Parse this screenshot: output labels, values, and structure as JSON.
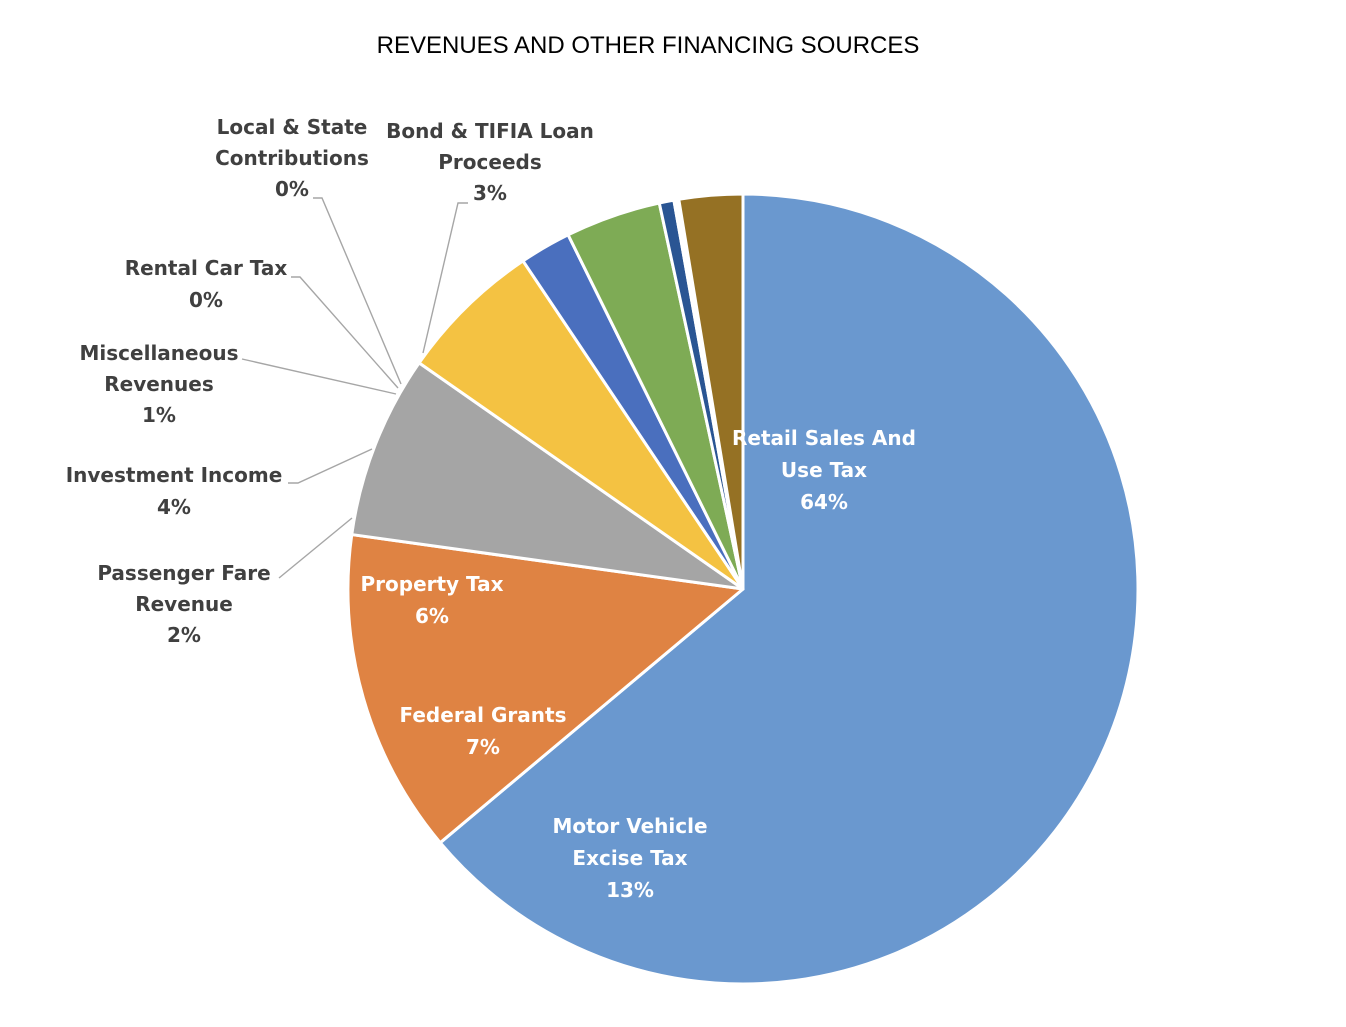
{
  "chart_data": {
    "type": "pie",
    "title": "REVENUES AND OTHER FINANCING SOURCES",
    "start_angle_deg": 0,
    "direction": "clockwise",
    "slices": [
      {
        "name": "Retail Sales And Use Tax",
        "label_lines": [
          "Retail Sales And",
          "Use Tax"
        ],
        "percent_label": "64%",
        "value": 63.9,
        "color": "#6a98cf",
        "label_color": "#ffffff",
        "label_position": "inside"
      },
      {
        "name": "Motor Vehicle Excise Tax",
        "label_lines": [
          "Motor Vehicle",
          "Excise Tax"
        ],
        "percent_label": "13%",
        "value": 13.3,
        "color": "#df8343",
        "label_color": "#ffffff",
        "label_position": "inside"
      },
      {
        "name": "Federal Grants",
        "label_lines": [
          "Federal Grants"
        ],
        "percent_label": "7%",
        "value": 7.5,
        "color": "#a5a5a5",
        "label_color": "#ffffff",
        "label_position": "inside"
      },
      {
        "name": "Property Tax",
        "label_lines": [
          "Property Tax"
        ],
        "percent_label": "6%",
        "value": 5.9,
        "color": "#f4c242",
        "label_color": "#ffffff",
        "label_position": "inside"
      },
      {
        "name": "Passenger Fare Revenue",
        "label_lines": [
          "Passenger Fare",
          "Revenue"
        ],
        "percent_label": "2%",
        "value": 2.1,
        "color": "#4a6fbe",
        "label_color": "#404040",
        "label_position": "outside"
      },
      {
        "name": "Investment Income",
        "label_lines": [
          "Investment Income"
        ],
        "percent_label": "4%",
        "value": 3.9,
        "color": "#7eab55",
        "label_color": "#404040",
        "label_position": "outside"
      },
      {
        "name": "Miscellaneous Revenues",
        "label_lines": [
          "Miscellaneous",
          "Revenues"
        ],
        "percent_label": "1%",
        "value": 0.6,
        "color": "#2a5593",
        "label_color": "#404040",
        "label_position": "outside"
      },
      {
        "name": "Rental Car Tax",
        "label_lines": [
          "Rental Car Tax"
        ],
        "percent_label": "0%",
        "value": 0.1,
        "color": "#a2480f",
        "label_color": "#404040",
        "label_position": "outside"
      },
      {
        "name": "Local & State Contributions",
        "label_lines": [
          "Local & State",
          "Contributions"
        ],
        "percent_label": "0%",
        "value": 0.1,
        "color": "#636363",
        "label_color": "#404040",
        "label_position": "outside"
      },
      {
        "name": "Bond & TIFIA Loan Proceeds",
        "label_lines": [
          "Bond & TIFIA Loan",
          "Proceeds"
        ],
        "percent_label": "3%",
        "value": 2.6,
        "color": "#957124",
        "label_color": "#404040",
        "label_position": "outside"
      }
    ]
  }
}
